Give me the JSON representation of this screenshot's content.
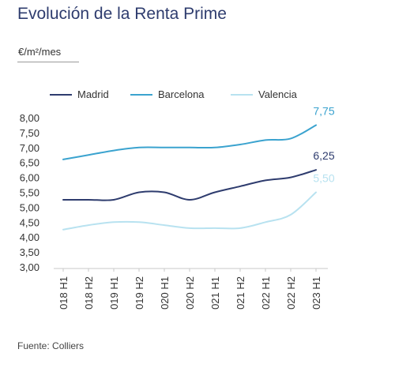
{
  "title": "Evolución de la Renta Prime",
  "unit": "€/m²/mes",
  "source": "Fuente: Colliers",
  "chart_data": {
    "type": "line",
    "x": [
      "018 H1",
      "018 H2",
      "019 H1",
      "019 H2",
      "020 H1",
      "020 H2",
      "021 H1",
      "021 H2",
      "022 H1",
      "022 H2",
      "023 H1"
    ],
    "ylim": [
      3,
      8
    ],
    "yticks": [
      "3,00",
      "3,50",
      "4,00",
      "4,50",
      "5,00",
      "5,50",
      "6,00",
      "6,50",
      "7,00",
      "7,50",
      "8,00"
    ],
    "legend_position": "top",
    "grid": false,
    "series": [
      {
        "name": "Madrid",
        "color": "#2e3c6e",
        "values": [
          5.25,
          5.25,
          5.25,
          5.5,
          5.5,
          5.25,
          5.5,
          5.7,
          5.9,
          6.0,
          6.25
        ],
        "end_label": "6,25"
      },
      {
        "name": "Barcelona",
        "color": "#3ba3cf",
        "values": [
          6.6,
          6.75,
          6.9,
          7.0,
          7.0,
          7.0,
          7.0,
          7.1,
          7.25,
          7.3,
          7.75
        ],
        "end_label": "7,75"
      },
      {
        "name": "Valencia",
        "color": "#b8e2f0",
        "values": [
          4.25,
          4.4,
          4.5,
          4.5,
          4.4,
          4.3,
          4.3,
          4.3,
          4.5,
          4.75,
          5.5
        ],
        "end_label": "5,50"
      }
    ]
  }
}
